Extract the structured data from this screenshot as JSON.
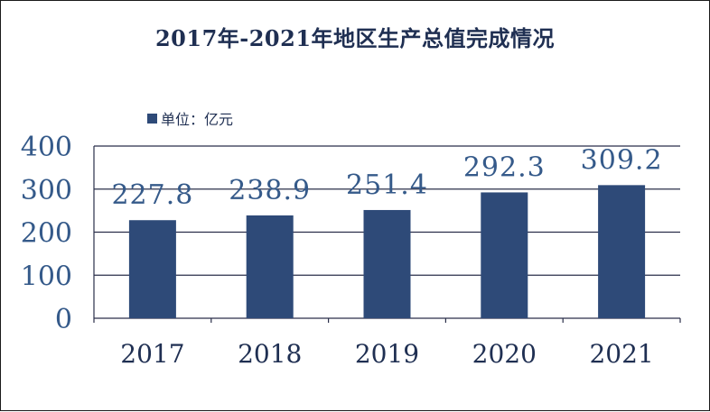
{
  "chart_data": {
    "type": "bar",
    "title": "2017年-2021年地区生产总值完成情况",
    "legend": "单位：亿元",
    "legend_position": "top-left",
    "categories": [
      "2017",
      "2018",
      "2019",
      "2020",
      "2021"
    ],
    "values": [
      227.8,
      238.9,
      251.4,
      292.3,
      309.2
    ],
    "data_labels": [
      "227.8",
      "238.9",
      "251.4",
      "292.3",
      "309.2"
    ],
    "yticks": [
      0,
      100,
      200,
      300,
      400
    ],
    "ylim": [
      0,
      400
    ],
    "grid": true,
    "bar_color": "#2e4a78"
  }
}
